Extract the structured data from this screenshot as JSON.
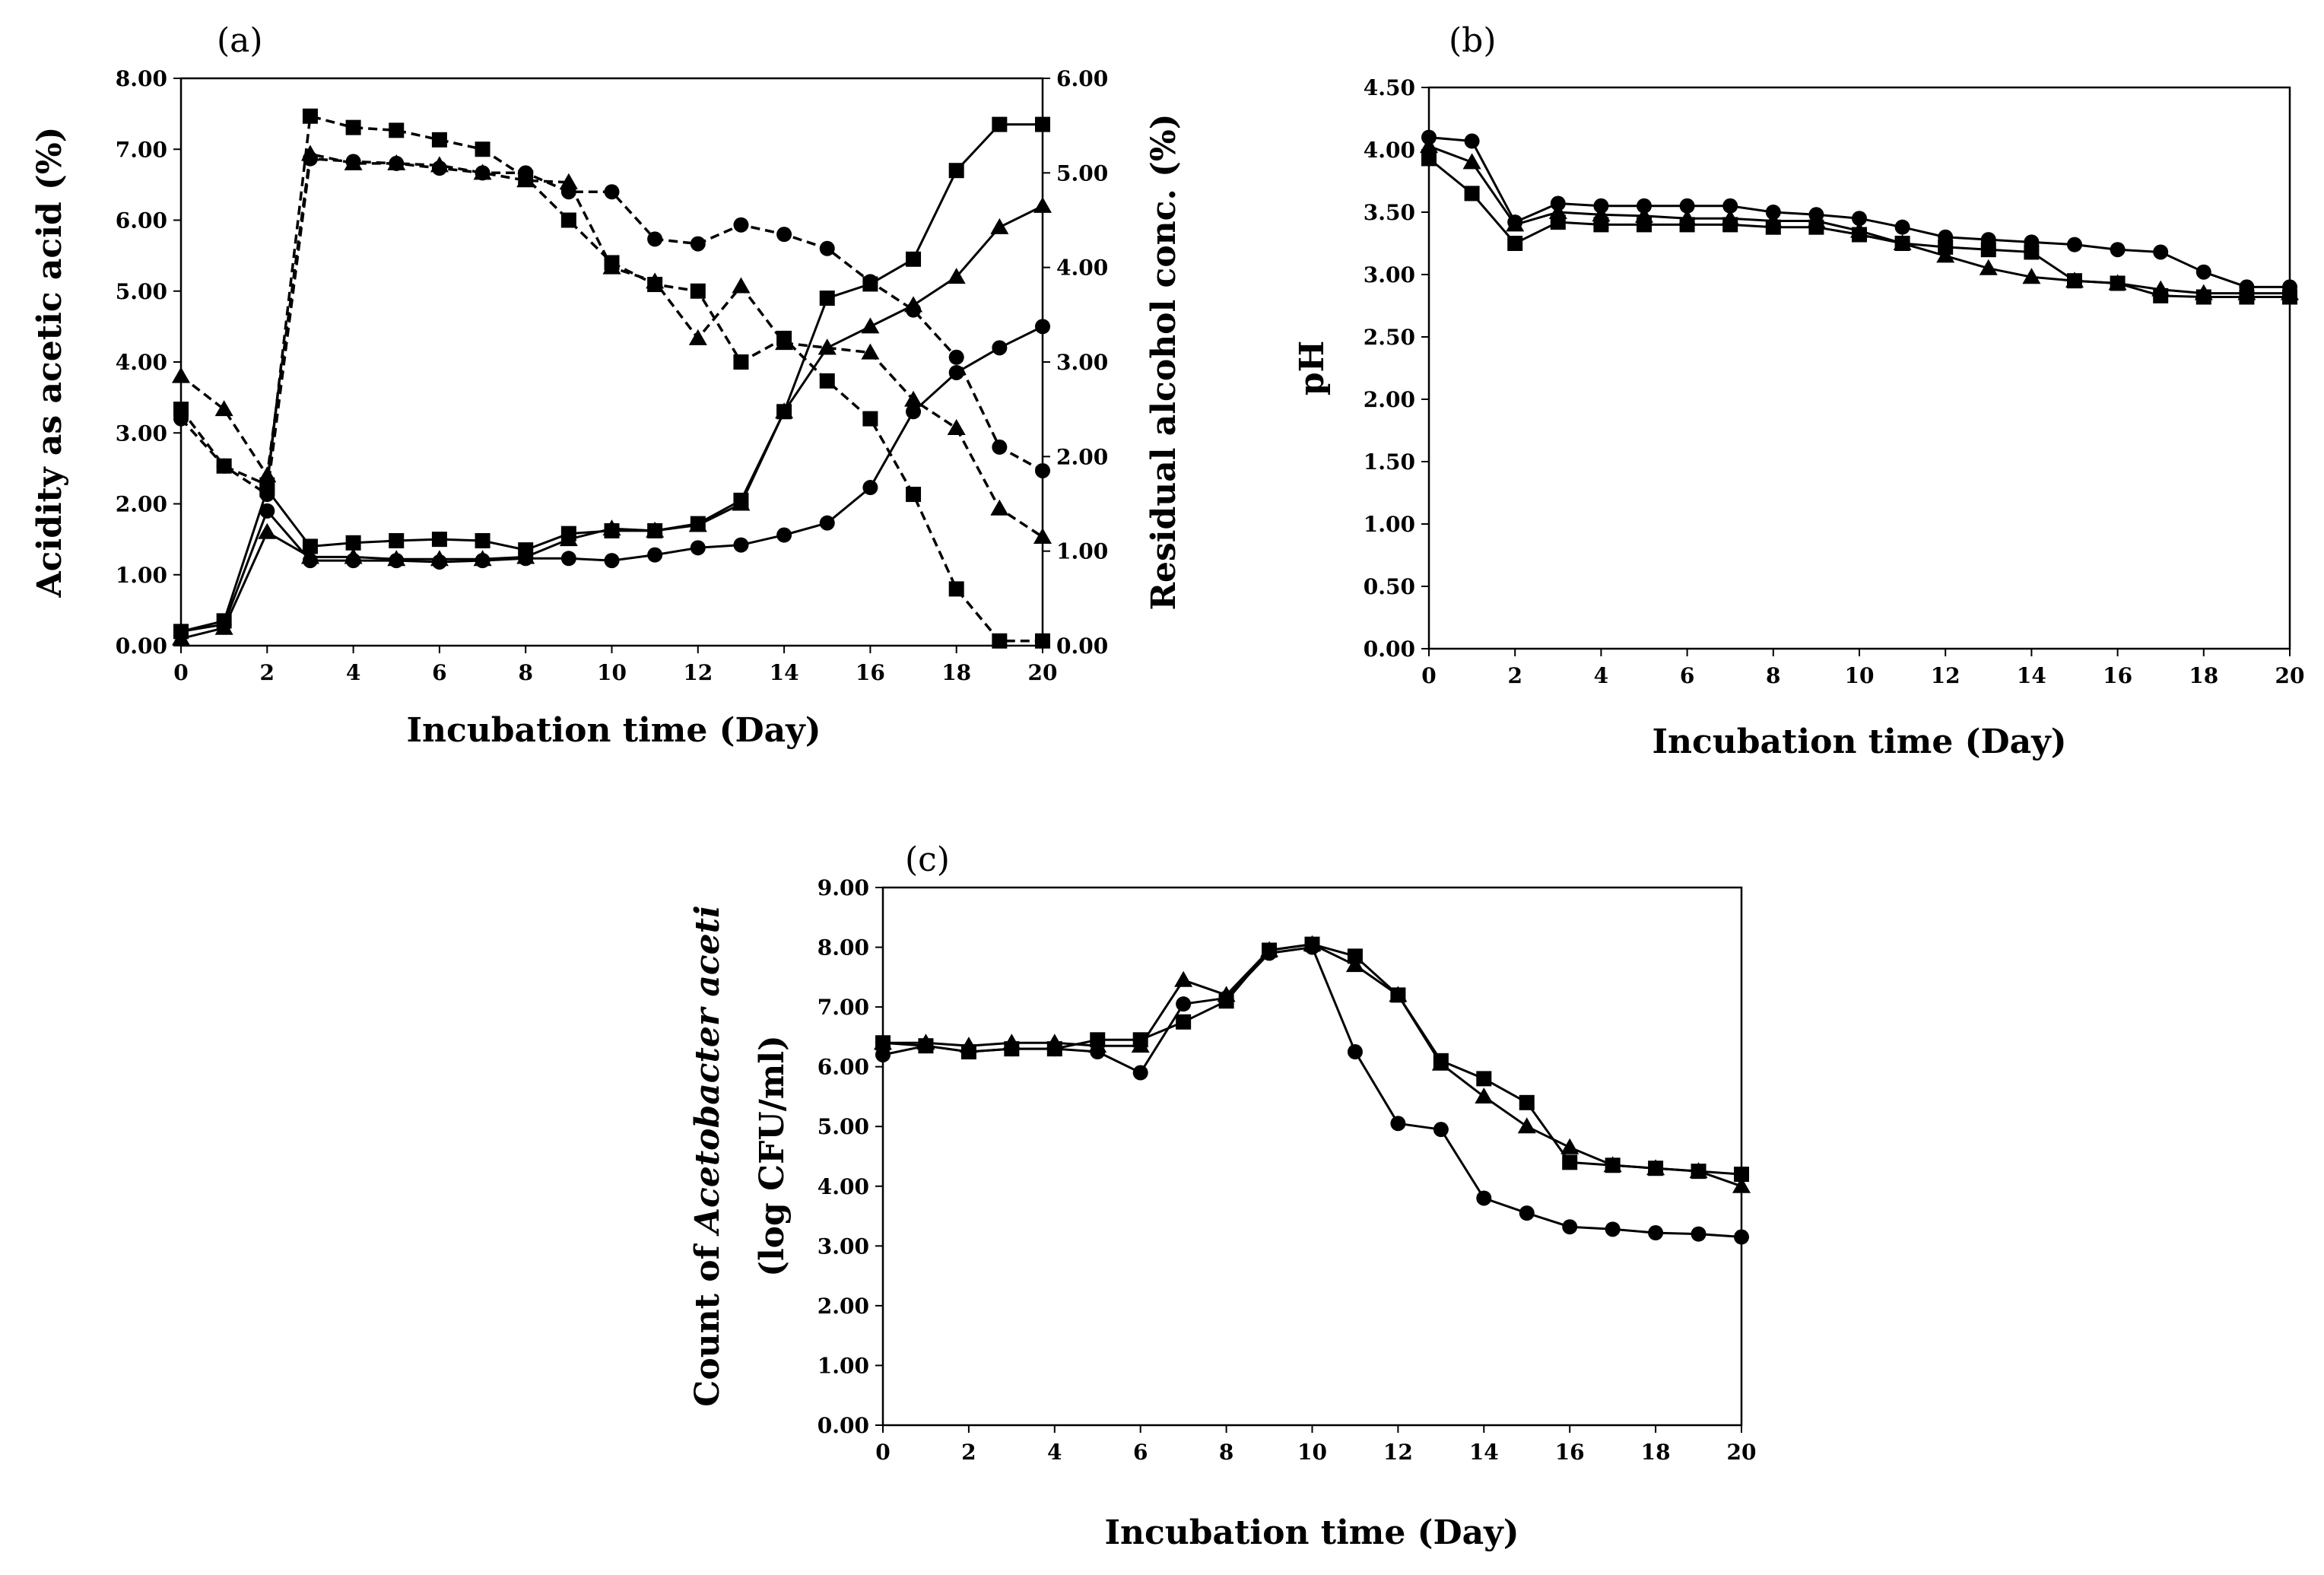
{
  "chart_data": [
    {
      "panel": "(a)",
      "type": "line",
      "xlabel": "Incubation time (Day)",
      "ylabel": "Acidity as acetic acid (%)",
      "y2label": "Residual alcohol conc. (%)",
      "xlim": [
        0,
        20
      ],
      "ylim": [
        0,
        8
      ],
      "y2lim": [
        0,
        6
      ],
      "xticks": [
        "0",
        "2",
        "4",
        "6",
        "8",
        "10",
        "12",
        "14",
        "16",
        "18",
        "20"
      ],
      "yticks": [
        "0.00",
        "1.00",
        "2.00",
        "3.00",
        "4.00",
        "5.00",
        "6.00",
        "7.00",
        "8.00"
      ],
      "y2ticks": [
        "0.00",
        "1.00",
        "2.00",
        "3.00",
        "4.00",
        "5.00",
        "6.00"
      ],
      "x": [
        0,
        1,
        2,
        3,
        4,
        5,
        6,
        7,
        8,
        9,
        10,
        11,
        12,
        13,
        14,
        15,
        16,
        17,
        18,
        19,
        20
      ],
      "series": [
        {
          "name": "acidity-circle",
          "marker": "circle",
          "line": "solid",
          "axis": "left",
          "values": [
            0.2,
            0.3,
            1.9,
            1.2,
            1.2,
            1.2,
            1.18,
            1.2,
            1.23,
            1.23,
            1.2,
            1.28,
            1.38,
            1.42,
            1.56,
            1.73,
            2.23,
            3.3,
            3.85,
            4.2,
            4.5
          ]
        },
        {
          "name": "acidity-triangle",
          "marker": "triangle",
          "line": "solid",
          "axis": "left",
          "values": [
            0.1,
            0.25,
            1.6,
            1.25,
            1.25,
            1.22,
            1.22,
            1.22,
            1.25,
            1.5,
            1.65,
            1.62,
            1.7,
            2.0,
            3.3,
            4.2,
            4.5,
            4.8,
            5.2,
            5.9,
            6.2
          ]
        },
        {
          "name": "acidity-square",
          "marker": "square",
          "line": "solid",
          "axis": "left",
          "values": [
            0.2,
            0.35,
            2.2,
            1.4,
            1.45,
            1.48,
            1.5,
            1.48,
            1.35,
            1.58,
            1.62,
            1.62,
            1.72,
            2.05,
            3.3,
            4.9,
            5.1,
            5.45,
            6.7,
            7.35,
            7.35
          ]
        },
        {
          "name": "alcohol-circle",
          "marker": "circle",
          "line": "dashed",
          "axis": "right",
          "values": [
            2.4,
            1.9,
            1.6,
            5.15,
            5.12,
            5.1,
            5.05,
            5.0,
            5.0,
            4.8,
            4.8,
            4.3,
            4.25,
            4.45,
            4.35,
            4.2,
            3.85,
            3.55,
            3.05,
            2.1,
            1.85
          ]
        },
        {
          "name": "alcohol-triangle",
          "marker": "triangle",
          "line": "dashed",
          "axis": "right",
          "values": [
            2.85,
            2.5,
            1.8,
            5.2,
            5.1,
            5.1,
            5.08,
            5.0,
            4.92,
            4.9,
            4.0,
            3.85,
            3.25,
            3.8,
            3.2,
            3.15,
            3.1,
            2.6,
            2.3,
            1.45,
            1.15
          ]
        },
        {
          "name": "alcohol-square",
          "marker": "square",
          "line": "dashed",
          "axis": "right",
          "values": [
            2.5,
            1.9,
            1.7,
            5.6,
            5.48,
            5.45,
            5.35,
            5.25,
            4.95,
            4.5,
            4.05,
            3.82,
            3.75,
            3.0,
            3.25,
            2.8,
            2.4,
            1.6,
            0.6,
            0.05,
            0.05
          ]
        }
      ]
    },
    {
      "panel": "(b)",
      "type": "line",
      "xlabel": "Incubation time (Day)",
      "ylabel": "pH",
      "xlim": [
        0,
        20
      ],
      "ylim": [
        0,
        4.5
      ],
      "xticks": [
        "0",
        "2",
        "4",
        "6",
        "8",
        "10",
        "12",
        "14",
        "16",
        "18",
        "20"
      ],
      "yticks": [
        "0.00",
        "0.50",
        "1.00",
        "1.50",
        "2.00",
        "2.50",
        "3.00",
        "3.50",
        "4.00",
        "4.50"
      ],
      "x": [
        0,
        1,
        2,
        3,
        4,
        5,
        6,
        7,
        8,
        9,
        10,
        11,
        12,
        13,
        14,
        15,
        16,
        17,
        18,
        19,
        20
      ],
      "series": [
        {
          "name": "ph-circle",
          "marker": "circle",
          "line": "solid",
          "values": [
            4.1,
            4.07,
            3.42,
            3.57,
            3.55,
            3.55,
            3.55,
            3.55,
            3.5,
            3.48,
            3.45,
            3.38,
            3.3,
            3.28,
            3.26,
            3.24,
            3.2,
            3.18,
            3.02,
            2.9,
            2.9
          ]
        },
        {
          "name": "ph-triangle",
          "marker": "triangle",
          "line": "solid",
          "values": [
            4.03,
            3.9,
            3.4,
            3.5,
            3.48,
            3.47,
            3.45,
            3.45,
            3.43,
            3.43,
            3.35,
            3.25,
            3.15,
            3.05,
            2.98,
            2.95,
            2.93,
            2.88,
            2.85,
            2.85,
            2.85
          ]
        },
        {
          "name": "ph-square",
          "marker": "square",
          "line": "solid",
          "values": [
            3.93,
            3.65,
            3.25,
            3.42,
            3.4,
            3.4,
            3.4,
            3.4,
            3.38,
            3.38,
            3.32,
            3.25,
            3.22,
            3.2,
            3.18,
            2.95,
            2.93,
            2.83,
            2.82,
            2.82,
            2.82
          ]
        }
      ]
    },
    {
      "panel": "(c)",
      "type": "line",
      "xlabel": "Incubation time (Day)",
      "ylabel_line1_prefix": "Count of ",
      "ylabel_line1_italic": "Acetobacter aceti",
      "ylabel_line2": "(log CFU/ml)",
      "xlim": [
        0,
        20
      ],
      "ylim": [
        0,
        9
      ],
      "xticks": [
        "0",
        "2",
        "4",
        "6",
        "8",
        "10",
        "12",
        "14",
        "16",
        "18",
        "20"
      ],
      "yticks": [
        "0.00",
        "1.00",
        "2.00",
        "3.00",
        "4.00",
        "5.00",
        "6.00",
        "7.00",
        "8.00",
        "9.00"
      ],
      "x": [
        0,
        1,
        2,
        3,
        4,
        5,
        6,
        7,
        8,
        9,
        10,
        11,
        12,
        13,
        14,
        15,
        16,
        17,
        18,
        19,
        20
      ],
      "series": [
        {
          "name": "count-circle",
          "marker": "circle",
          "line": "solid",
          "values": [
            6.2,
            6.35,
            6.25,
            6.3,
            6.3,
            6.25,
            5.9,
            7.05,
            7.15,
            7.9,
            8.0,
            6.25,
            5.05,
            4.95,
            3.8,
            3.55,
            3.32,
            3.28,
            3.22,
            3.2,
            3.15
          ]
        },
        {
          "name": "count-triangle",
          "marker": "triangle",
          "line": "solid",
          "values": [
            6.4,
            6.4,
            6.35,
            6.4,
            6.4,
            6.35,
            6.35,
            7.45,
            7.2,
            7.95,
            8.05,
            7.7,
            7.2,
            6.05,
            5.5,
            5.0,
            4.65,
            4.35,
            4.3,
            4.25,
            4.0
          ]
        },
        {
          "name": "count-square",
          "marker": "square",
          "line": "solid",
          "values": [
            6.4,
            6.35,
            6.25,
            6.3,
            6.3,
            6.45,
            6.45,
            6.75,
            7.1,
            7.95,
            8.05,
            7.85,
            7.2,
            6.1,
            5.8,
            5.4,
            4.4,
            4.35,
            4.3,
            4.25,
            4.2
          ]
        }
      ]
    }
  ]
}
